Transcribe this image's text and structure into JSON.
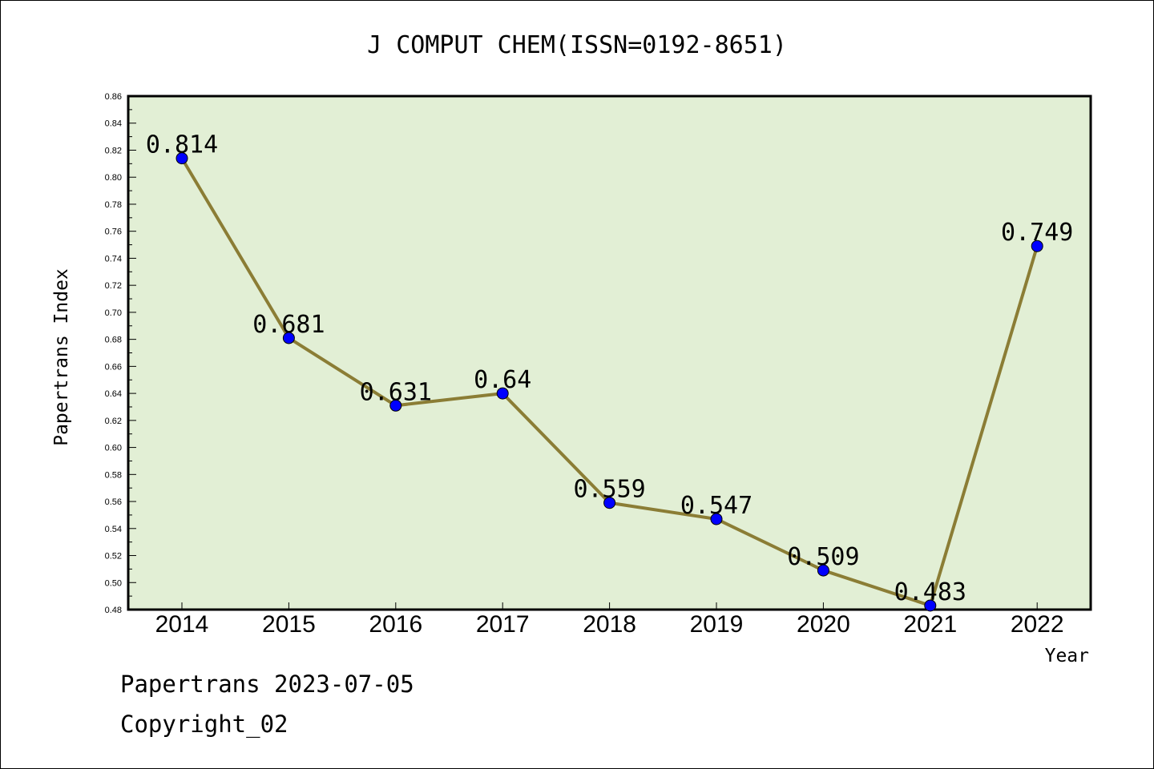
{
  "chart_data": {
    "type": "line",
    "title": "J COMPUT CHEM(ISSN=0192-8651)",
    "xlabel": "Year",
    "ylabel": "Papertrans Index",
    "categories": [
      "2014",
      "2015",
      "2016",
      "2017",
      "2018",
      "2019",
      "2020",
      "2021",
      "2022"
    ],
    "values": [
      0.814,
      0.681,
      0.631,
      0.64,
      0.559,
      0.547,
      0.509,
      0.483,
      0.749
    ],
    "data_labels": [
      "0.814",
      "0.681",
      "0.631",
      "0.64",
      "0.559",
      "0.547",
      "0.509",
      "0.483",
      "0.749"
    ],
    "ylim": [
      0.48,
      0.86
    ],
    "yticks": [
      "0.48",
      "0.50",
      "0.52",
      "0.54",
      "0.56",
      "0.58",
      "0.60",
      "0.62",
      "0.64",
      "0.66",
      "0.68",
      "0.70",
      "0.72",
      "0.74",
      "0.76",
      "0.78",
      "0.80",
      "0.82",
      "0.84",
      "0.86"
    ],
    "grid": false,
    "colors": {
      "plot_background": "#e2efd5",
      "line": "#8b7d35",
      "marker": "#0000ff"
    }
  },
  "footer": {
    "line1": "Papertrans 2023-07-05",
    "line2": "Copyright_02"
  }
}
